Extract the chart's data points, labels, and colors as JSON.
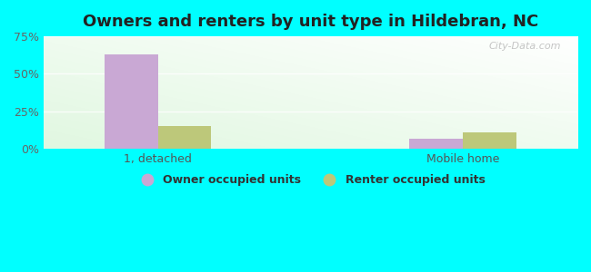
{
  "title": "Owners and renters by unit type in Hildebran, NC",
  "categories": [
    "1, detached",
    "Mobile home"
  ],
  "owner_values": [
    63.0,
    7.0
  ],
  "renter_values": [
    15.0,
    11.0
  ],
  "owner_color": "#c9a8d4",
  "renter_color": "#bdc87a",
  "ylim": [
    0,
    75
  ],
  "yticks": [
    0,
    25,
    50,
    75
  ],
  "ytick_labels": [
    "0%",
    "25%",
    "50%",
    "75%"
  ],
  "legend_owner": "Owner occupied units",
  "legend_renter": "Renter occupied units",
  "bg_outer": "#00ffff",
  "watermark": "City-Data.com",
  "bar_width": 0.35,
  "group_positions": [
    1.0,
    3.0
  ],
  "xlim": [
    0.25,
    3.75
  ]
}
